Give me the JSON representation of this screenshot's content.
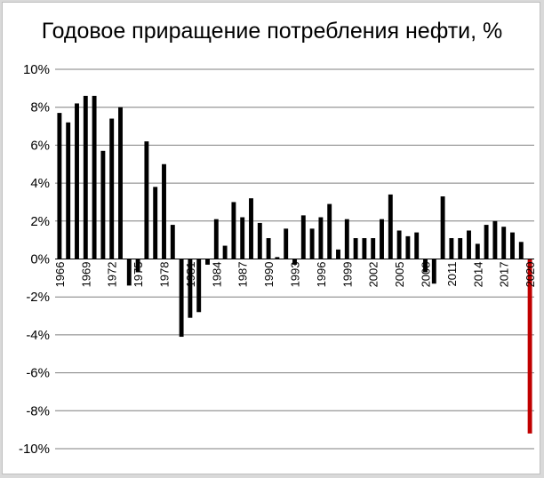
{
  "chart_data": {
    "type": "bar",
    "title": "Годовое приращение потребления нефти, %",
    "xlabel": "",
    "ylabel": "",
    "ylim": [
      -10,
      10
    ],
    "y_ticks": [
      "10%",
      "8%",
      "6%",
      "4%",
      "2%",
      "0%",
      "-2%",
      "-4%",
      "-6%",
      "-8%",
      "-10%"
    ],
    "years": [
      1966,
      1967,
      1968,
      1969,
      1970,
      1971,
      1972,
      1973,
      1974,
      1975,
      1976,
      1977,
      1978,
      1979,
      1980,
      1981,
      1982,
      1983,
      1984,
      1985,
      1986,
      1987,
      1988,
      1989,
      1990,
      1991,
      1992,
      1993,
      1994,
      1995,
      1996,
      1997,
      1998,
      1999,
      2000,
      2001,
      2002,
      2003,
      2004,
      2005,
      2006,
      2007,
      2008,
      2009,
      2010,
      2011,
      2012,
      2013,
      2014,
      2015,
      2016,
      2017,
      2018,
      2019,
      2020
    ],
    "x_tick_labels": [
      "1966",
      "1969",
      "1972",
      "1975",
      "1978",
      "1981",
      "1984",
      "1987",
      "1990",
      "1993",
      "1996",
      "1999",
      "2002",
      "2005",
      "2008",
      "2011",
      "2014",
      "2017",
      "2020"
    ],
    "values": [
      7.7,
      7.2,
      8.2,
      8.6,
      8.6,
      5.7,
      7.4,
      8.0,
      -1.4,
      -0.7,
      6.2,
      3.8,
      5.0,
      1.8,
      -4.1,
      -3.1,
      -2.8,
      -0.3,
      2.1,
      0.7,
      3.0,
      2.2,
      3.2,
      1.9,
      1.1,
      0.1,
      1.6,
      -0.3,
      2.3,
      1.6,
      2.2,
      2.9,
      0.5,
      2.1,
      1.1,
      1.1,
      1.1,
      2.1,
      3.4,
      1.5,
      1.2,
      1.4,
      -0.7,
      -1.3,
      3.3,
      1.1,
      1.1,
      1.5,
      0.8,
      1.8,
      2.0,
      1.7,
      1.4,
      0.9,
      -9.2
    ],
    "grid": true,
    "legend": "none",
    "colors": {
      "bar": "#000000",
      "highlight": "#c00000",
      "grid": "#7f7f7f"
    },
    "highlight_year": 2020
  }
}
